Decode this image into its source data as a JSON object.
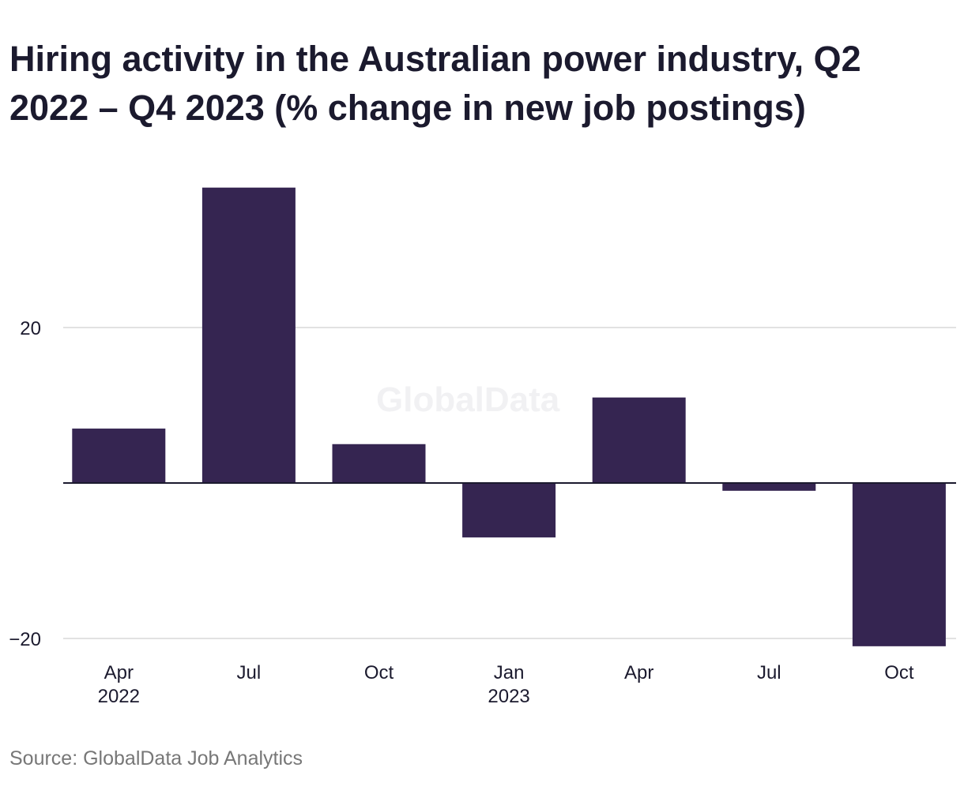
{
  "title": "Hiring activity in the Australian power industry, Q2 2022 – Q4 2023 (% change in new job postings)",
  "source": "Source: GlobalData Job Analytics",
  "watermark": "GlobalData",
  "colors": {
    "bar": "#352551",
    "grid": "#d9d9d9",
    "zero_line": "#1b1a2e",
    "text": "#1b1a2e"
  },
  "chart_data": {
    "type": "bar",
    "categories": [
      "Q2 2022",
      "Q3 2022",
      "Q4 2022",
      "Q1 2023",
      "Q2 2023",
      "Q3 2023",
      "Q4 2023"
    ],
    "tick_labels": [
      [
        "Apr",
        "2022"
      ],
      [
        "Jul"
      ],
      [
        "Oct"
      ],
      [
        "Jan",
        "2023"
      ],
      [
        "Apr"
      ],
      [
        "Jul"
      ],
      [
        "Oct"
      ]
    ],
    "values": [
      7,
      38,
      5,
      -7,
      11,
      -1,
      -21
    ],
    "y_ticks": [
      20,
      -20
    ],
    "y_tick_labels": [
      "20",
      "−20"
    ],
    "ylim": [
      -20,
      38
    ],
    "grid": true,
    "title": "Hiring activity in the Australian power industry, Q2 2022 – Q4 2023 (% change in new job postings)",
    "xlabel": "",
    "ylabel": ""
  }
}
